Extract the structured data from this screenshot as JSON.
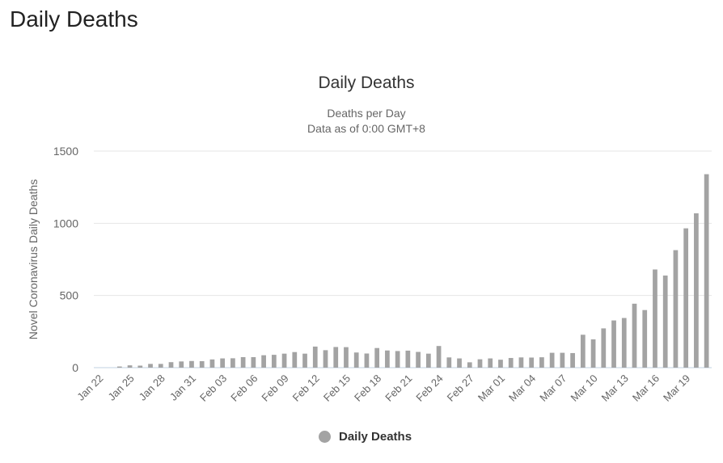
{
  "page": {
    "heading": "Daily Deaths"
  },
  "colors": {
    "bar": "#a3a3a3",
    "grid": "#e6e6e6",
    "axis": "#c0d0e0",
    "text": "#666666"
  },
  "chart_data": {
    "type": "bar",
    "title": "Daily Deaths",
    "subtitle_line1": "Deaths per Day",
    "subtitle_line2": "Data as of 0:00 GMT+8",
    "xlabel": "",
    "ylabel": "Novel Coronavirus Daily Deaths",
    "ylim": [
      0,
      1500
    ],
    "yticks": [
      "0",
      "500",
      "1000",
      "1500"
    ],
    "grid": true,
    "legend": "bottom-center",
    "categories": [
      "Jan 22",
      "Jan 23",
      "Jan 24",
      "Jan 25",
      "Jan 26",
      "Jan 27",
      "Jan 28",
      "Jan 29",
      "Jan 30",
      "Jan 31",
      "Feb 01",
      "Feb 02",
      "Feb 03",
      "Feb 04",
      "Feb 05",
      "Feb 06",
      "Feb 07",
      "Feb 08",
      "Feb 09",
      "Feb 10",
      "Feb 11",
      "Feb 12",
      "Feb 13",
      "Feb 14",
      "Feb 15",
      "Feb 16",
      "Feb 17",
      "Feb 18",
      "Feb 19",
      "Feb 20",
      "Feb 21",
      "Feb 22",
      "Feb 23",
      "Feb 24",
      "Feb 25",
      "Feb 26",
      "Feb 27",
      "Feb 28",
      "Feb 29",
      "Mar 01",
      "Mar 02",
      "Mar 03",
      "Mar 04",
      "Mar 05",
      "Mar 06",
      "Mar 07",
      "Mar 08",
      "Mar 09",
      "Mar 10",
      "Mar 11",
      "Mar 12",
      "Mar 13",
      "Mar 14",
      "Mar 15",
      "Mar 16",
      "Mar 17",
      "Mar 18",
      "Mar 19",
      "Mar 20",
      "Mar 21"
    ],
    "tick_every": 3,
    "series": [
      {
        "name": "Daily Deaths",
        "values": [
          0,
          0,
          8,
          16,
          14,
          26,
          26,
          38,
          43,
          46,
          45,
          57,
          64,
          65,
          73,
          73,
          86,
          89,
          97,
          108,
          97,
          146,
          121,
          143,
          142,
          105,
          98,
          136,
          119,
          115,
          118,
          109,
          97,
          150,
          71,
          64,
          37,
          58,
          64,
          55,
          67,
          71,
          70,
          72,
          103,
          103,
          101,
          228,
          196,
          272,
          327,
          344,
          443,
          399,
          680,
          638,
          814,
          965,
          1069,
          1340
        ]
      }
    ]
  }
}
